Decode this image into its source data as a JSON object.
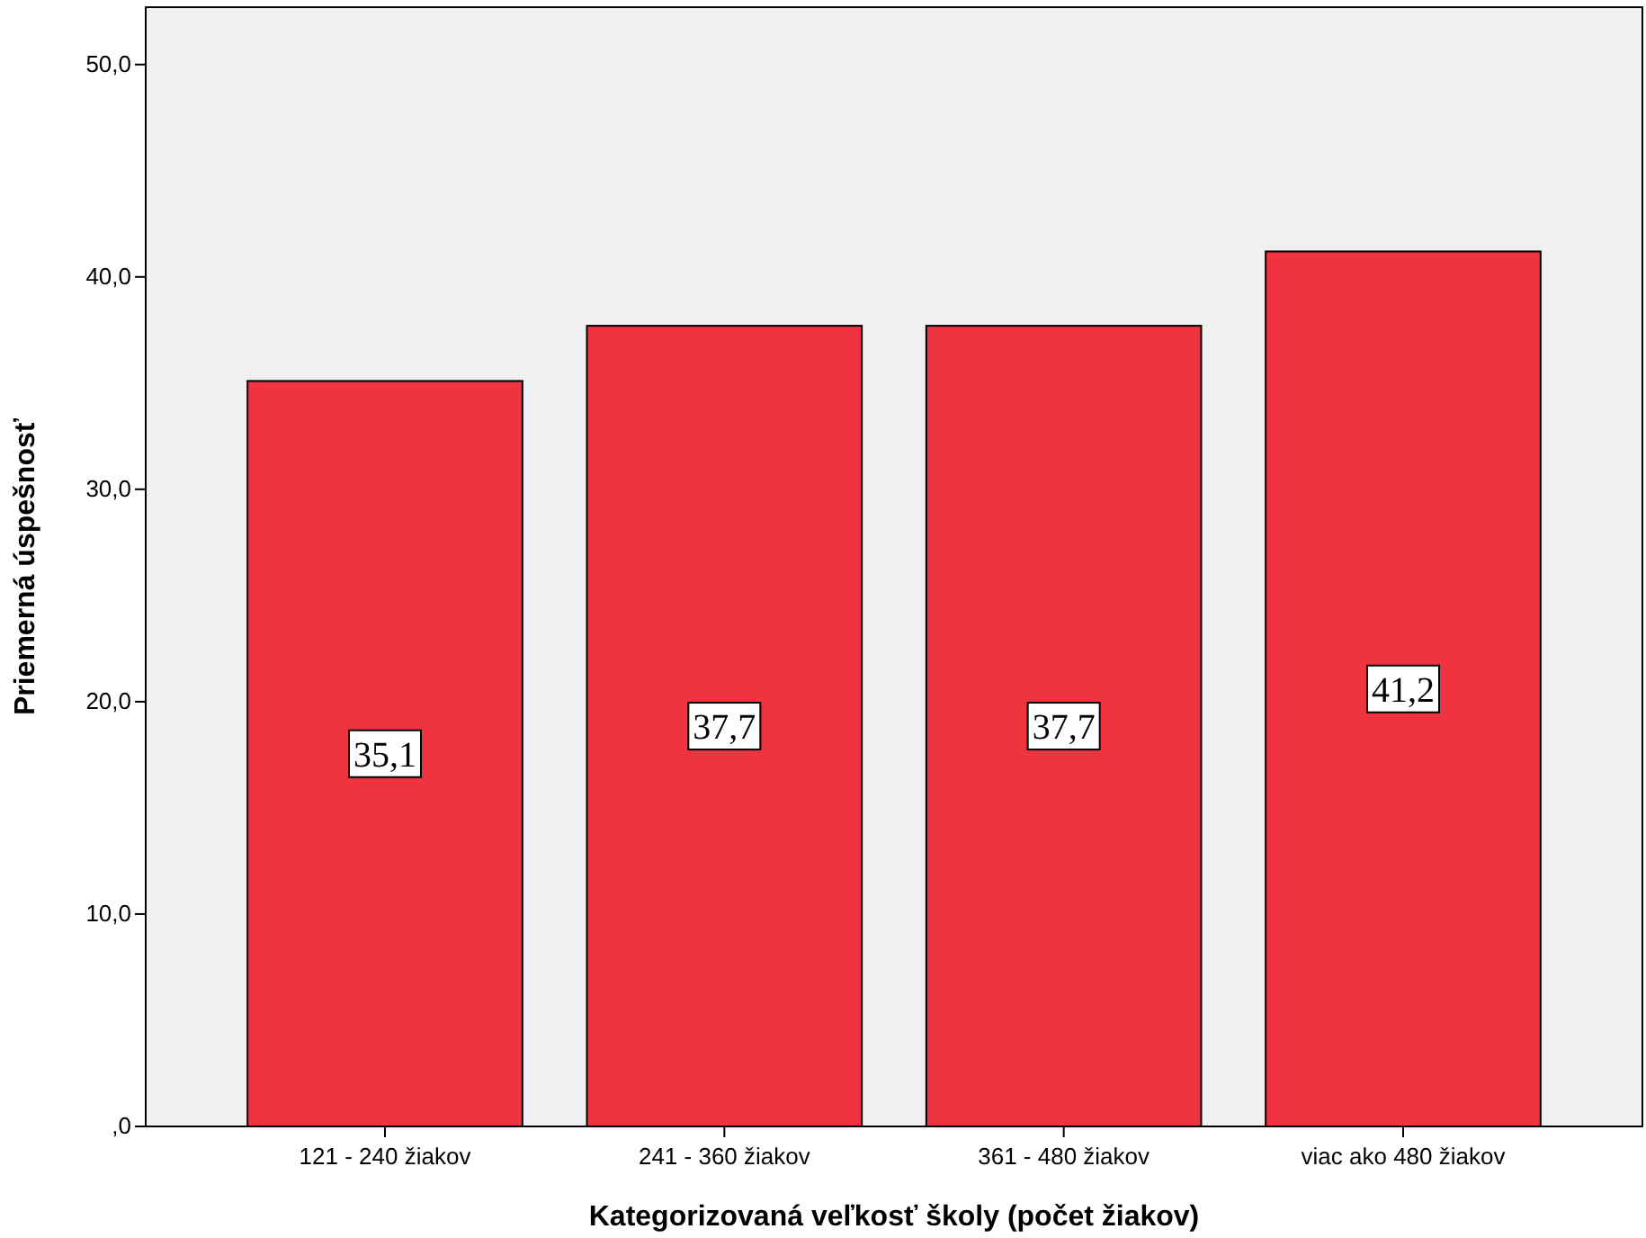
{
  "chart_data": {
    "type": "bar",
    "xlabel": "Kategorizovaná veľkosť školy (počet žiakov)",
    "ylabel": "Priemerná úspešnosť",
    "categories": [
      "121 - 240 žiakov",
      "241 - 360 žiakov",
      "361 - 480 žiakov",
      "viac ako 480 žiakov"
    ],
    "values": [
      35.1,
      37.7,
      37.7,
      41.2
    ],
    "value_labels": [
      "35,1",
      "37,7",
      "37,7",
      "41,2"
    ],
    "color": "#ef3340",
    "ylim": [
      0,
      52.7
    ],
    "yticks": [
      {
        "value": 0,
        "label": ",0"
      },
      {
        "value": 10,
        "label": "10,0"
      },
      {
        "value": 20,
        "label": "20,0"
      },
      {
        "value": 30,
        "label": "30,0"
      },
      {
        "value": 40,
        "label": "40,0"
      },
      {
        "value": 50,
        "label": "50,0"
      }
    ],
    "grid": false
  }
}
